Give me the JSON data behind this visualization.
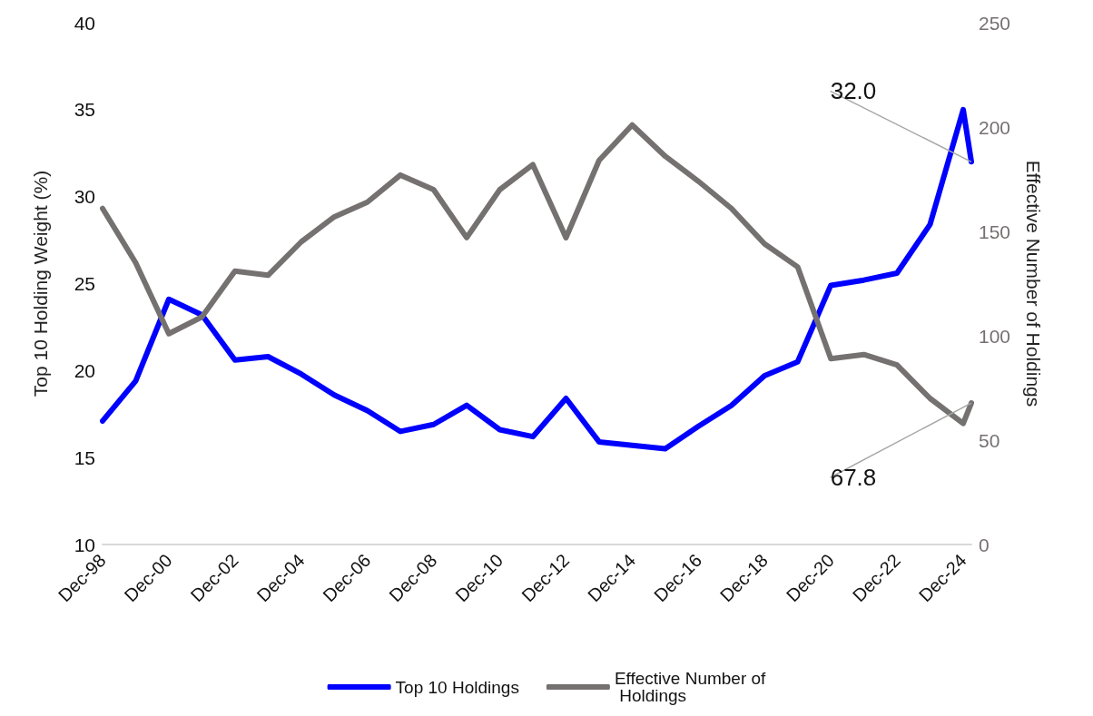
{
  "chart_data": {
    "type": "line",
    "ylabel": "Top 10 Holding Weight (%)",
    "y2label": "Effective Number of Holdings",
    "x": [
      "1998-12",
      "1999-12",
      "2000-12",
      "2001-12",
      "2002-12",
      "2003-12",
      "2004-12",
      "2005-12",
      "2006-12",
      "2007-12",
      "2008-12",
      "2009-12",
      "2010-12",
      "2011-12",
      "2012-12",
      "2013-12",
      "2014-12",
      "2015-12",
      "2016-12",
      "2017-12",
      "2018-12",
      "2019-12",
      "2020-12",
      "2021-12",
      "2022-12",
      "2023-12",
      "2024-12",
      "2025-03"
    ],
    "series": [
      {
        "name": "Top 10 Holdings",
        "color": "#0000ff",
        "values": [
          17.1,
          19.4,
          24.1,
          23.2,
          20.6,
          20.8,
          19.8,
          18.6,
          17.7,
          16.5,
          16.9,
          18.0,
          16.6,
          16.2,
          18.4,
          15.9,
          15.7,
          15.5,
          16.8,
          18.0,
          19.7,
          20.5,
          24.9,
          25.2,
          25.6,
          28.4,
          35.0,
          32.0
        ],
        "value_labels": [
          null,
          null,
          null,
          null,
          null,
          null,
          null,
          null,
          null,
          null,
          null,
          null,
          null,
          null,
          null,
          null,
          null,
          null,
          null,
          null,
          null,
          null,
          null,
          null,
          null,
          null,
          null,
          "32.0"
        ]
      },
      {
        "name": "Effective Number of Holdings",
        "color": "#767171",
        "axis": "y2",
        "values": [
          161,
          135,
          101,
          109,
          131,
          129,
          145,
          157,
          164,
          177,
          170,
          147,
          170,
          182,
          147,
          184,
          201,
          186,
          174,
          161,
          144,
          133,
          89,
          91,
          86,
          70,
          58,
          67.8
        ],
        "value_labels": [
          null,
          null,
          null,
          null,
          null,
          null,
          null,
          null,
          null,
          null,
          null,
          null,
          null,
          null,
          null,
          null,
          null,
          null,
          null,
          null,
          null,
          null,
          null,
          null,
          null,
          null,
          null,
          "67.8"
        ]
      }
    ],
    "xlim": [
      "1998-12",
      "2025-03"
    ],
    "xticks": [
      {
        "value": "1998-12",
        "label": "Dec-98"
      },
      {
        "value": "2000-12",
        "label": "Dec-00"
      },
      {
        "value": "2002-12",
        "label": "Dec-02"
      },
      {
        "value": "2004-12",
        "label": "Dec-04"
      },
      {
        "value": "2006-12",
        "label": "Dec-06"
      },
      {
        "value": "2008-12",
        "label": "Dec-08"
      },
      {
        "value": "2010-12",
        "label": "Dec-10"
      },
      {
        "value": "2012-12",
        "label": "Dec-12"
      },
      {
        "value": "2014-12",
        "label": "Dec-14"
      },
      {
        "value": "2016-12",
        "label": "Dec-16"
      },
      {
        "value": "2018-12",
        "label": "Dec-18"
      },
      {
        "value": "2020-12",
        "label": "Dec-20"
      },
      {
        "value": "2022-12",
        "label": "Dec-22"
      },
      {
        "value": "2024-12",
        "label": "Dec-24"
      }
    ],
    "ylim": [
      10,
      40
    ],
    "yticks": [
      10,
      15,
      20,
      25,
      30,
      35,
      40
    ],
    "y2lim": [
      0,
      250
    ],
    "y2ticks": [
      0,
      50,
      100,
      150,
      200,
      250
    ],
    "grid": false,
    "legend": "bottom",
    "marker": "none",
    "line_style": "solid"
  }
}
